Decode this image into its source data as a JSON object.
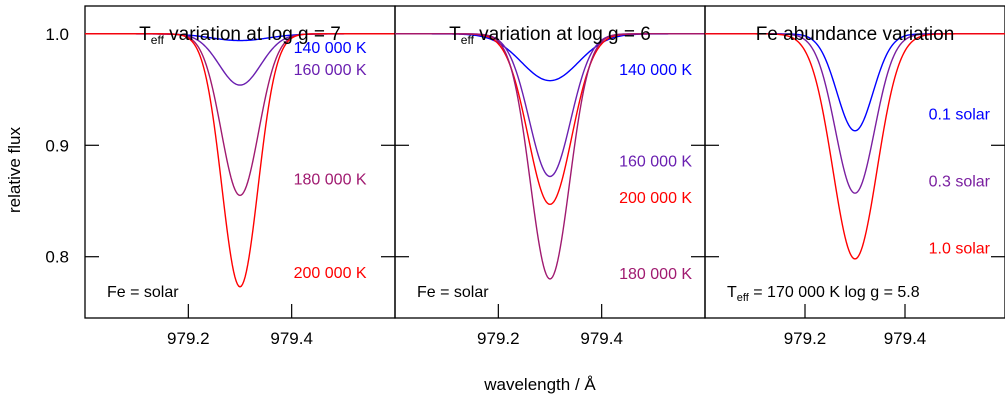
{
  "figure": {
    "xlabel": "wavelength / Å",
    "ylabel": "relative flux",
    "y_ticks": [
      "1.0",
      "0.9",
      "0.8"
    ],
    "x_ticks": [
      "979.2",
      "979.4"
    ]
  },
  "chart_data": [
    {
      "type": "line",
      "title": "T_eff variation at log g = 7",
      "title_parts": {
        "T": "T",
        "sub": "eff",
        "rest": " variation at log g = 7"
      },
      "xlim": [
        979.0,
        979.6
      ],
      "ylim": [
        0.745,
        1.025
      ],
      "x_ticks": [
        979.2,
        979.4
      ],
      "y_ticks": [
        1.0,
        0.9,
        0.8
      ],
      "annotation": "Fe = solar",
      "series": [
        {
          "name": "140 000 K",
          "color": "#0000ff",
          "center": 979.3,
          "depth": 0.006,
          "sigma": 0.055
        },
        {
          "name": "160 000 K",
          "color": "#6a1fb0",
          "center": 979.3,
          "depth": 0.046,
          "sigma": 0.04
        },
        {
          "name": "180 000 K",
          "color": "#a01a70",
          "center": 979.3,
          "depth": 0.145,
          "sigma": 0.036
        },
        {
          "name": "200 000 K",
          "color": "#ff0000",
          "center": 979.3,
          "depth": 0.227,
          "sigma": 0.035
        }
      ],
      "labels": [
        {
          "text": "140 000 K",
          "color": "#0000ff",
          "x": 979.545,
          "y": 0.983
        },
        {
          "text": "160 000 K",
          "color": "#6a1fb0",
          "x": 979.545,
          "y": 0.963
        },
        {
          "text": "180 000 K",
          "color": "#a01a70",
          "x": 979.545,
          "y": 0.865
        },
        {
          "text": "200 000 K",
          "color": "#ff0000",
          "x": 979.545,
          "y": 0.781
        }
      ]
    },
    {
      "type": "line",
      "title": "T_eff variation at log g = 6",
      "title_parts": {
        "T": "T",
        "sub": "eff",
        "rest": " variation at log g = 6"
      },
      "xlim": [
        979.0,
        979.6
      ],
      "ylim": [
        0.745,
        1.025
      ],
      "x_ticks": [
        979.2,
        979.4
      ],
      "y_ticks": [
        1.0,
        0.9,
        0.8
      ],
      "annotation": "Fe = solar",
      "series": [
        {
          "name": "140 000 K",
          "color": "#0000ff",
          "center": 979.3,
          "depth": 0.042,
          "sigma": 0.055
        },
        {
          "name": "160 000 K",
          "color": "#6a1fb0",
          "center": 979.3,
          "depth": 0.128,
          "sigma": 0.04
        },
        {
          "name": "200 000 K",
          "color": "#ff0000",
          "center": 979.3,
          "depth": 0.153,
          "sigma": 0.042
        },
        {
          "name": "180 000 K",
          "color": "#a01a70",
          "center": 979.3,
          "depth": 0.22,
          "sigma": 0.038
        }
      ],
      "labels": [
        {
          "text": "140 000 K",
          "color": "#0000ff",
          "x": 979.575,
          "y": 0.963
        },
        {
          "text": "160 000 K",
          "color": "#6a1fb0",
          "x": 979.575,
          "y": 0.881
        },
        {
          "text": "200 000 K",
          "color": "#ff0000",
          "x": 979.575,
          "y": 0.848
        },
        {
          "text": "180 000 K",
          "color": "#a01a70",
          "x": 979.575,
          "y": 0.78
        }
      ]
    },
    {
      "type": "line",
      "title": "Fe abundance variation",
      "xlim": [
        979.0,
        979.6
      ],
      "ylim": [
        0.745,
        1.025
      ],
      "x_ticks": [
        979.2,
        979.4
      ],
      "y_ticks": [
        1.0,
        0.9,
        0.8
      ],
      "annotation": "T_eff = 170 000 K  log g = 5.8",
      "annotation_parts": {
        "T": "T",
        "sub": "eff",
        "rest": " = 170 000 K  log g = 5.8"
      },
      "series": [
        {
          "name": "0.1 solar",
          "color": "#0000ff",
          "center": 979.3,
          "depth": 0.087,
          "sigma": 0.036
        },
        {
          "name": "0.3 solar",
          "color": "#7a1fa0",
          "center": 979.3,
          "depth": 0.143,
          "sigma": 0.039
        },
        {
          "name": "1.0 solar",
          "color": "#ff0000",
          "center": 979.3,
          "depth": 0.202,
          "sigma": 0.044
        }
      ],
      "labels": [
        {
          "text": "0.1 solar",
          "color": "#0000ff",
          "x": 979.57,
          "y": 0.923
        },
        {
          "text": "0.3 solar",
          "color": "#7a1fa0",
          "x": 979.57,
          "y": 0.863
        },
        {
          "text": "1.0 solar",
          "color": "#ff0000",
          "x": 979.57,
          "y": 0.803
        }
      ]
    }
  ]
}
